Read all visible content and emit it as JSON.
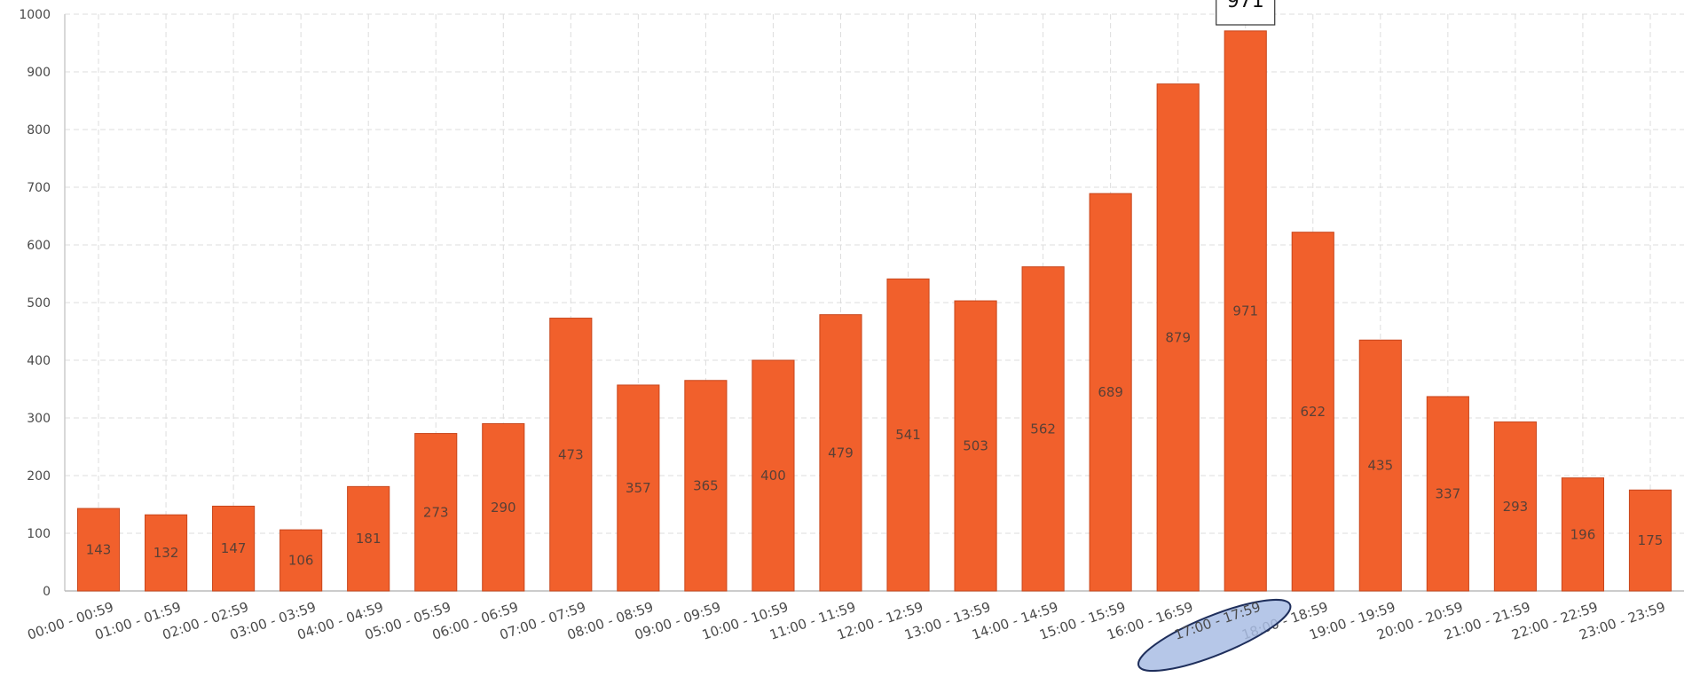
{
  "chart_data": {
    "type": "bar",
    "categories": [
      "00:00 - 00:59",
      "01:00 - 01:59",
      "02:00 - 02:59",
      "03:00 - 03:59",
      "04:00 - 04:59",
      "05:00 - 05:59",
      "06:00 - 06:59",
      "07:00 - 07:59",
      "08:00 - 08:59",
      "09:00 - 09:59",
      "10:00 - 10:59",
      "11:00 - 11:59",
      "12:00 - 12:59",
      "13:00 - 13:59",
      "14:00 - 14:59",
      "15:00 - 15:59",
      "16:00 - 16:59",
      "17:00 - 17:59",
      "18:00 - 18:59",
      "19:00 - 19:59",
      "20:00 - 20:59",
      "21:00 - 21:59",
      "22:00 - 22:59",
      "23:00 - 23:59"
    ],
    "values": [
      143,
      132,
      147,
      106,
      181,
      273,
      290,
      473,
      357,
      365,
      400,
      479,
      541,
      503,
      562,
      689,
      879,
      971,
      622,
      435,
      337,
      293,
      196,
      175
    ],
    "title": "",
    "xlabel": "",
    "ylabel": "",
    "ylim": [
      0,
      1000
    ],
    "yticks": [
      0,
      100,
      200,
      300,
      400,
      500,
      600,
      700,
      800,
      900,
      1000
    ],
    "grid": true,
    "bar_color": "#f1602c",
    "bar_edge_color": "#c8461c",
    "highlighted_category": "17:00 - 17:59",
    "highlight_color": "#a9bde4",
    "tooltip": {
      "category": "17:00 - 17:59",
      "value": "971"
    }
  }
}
